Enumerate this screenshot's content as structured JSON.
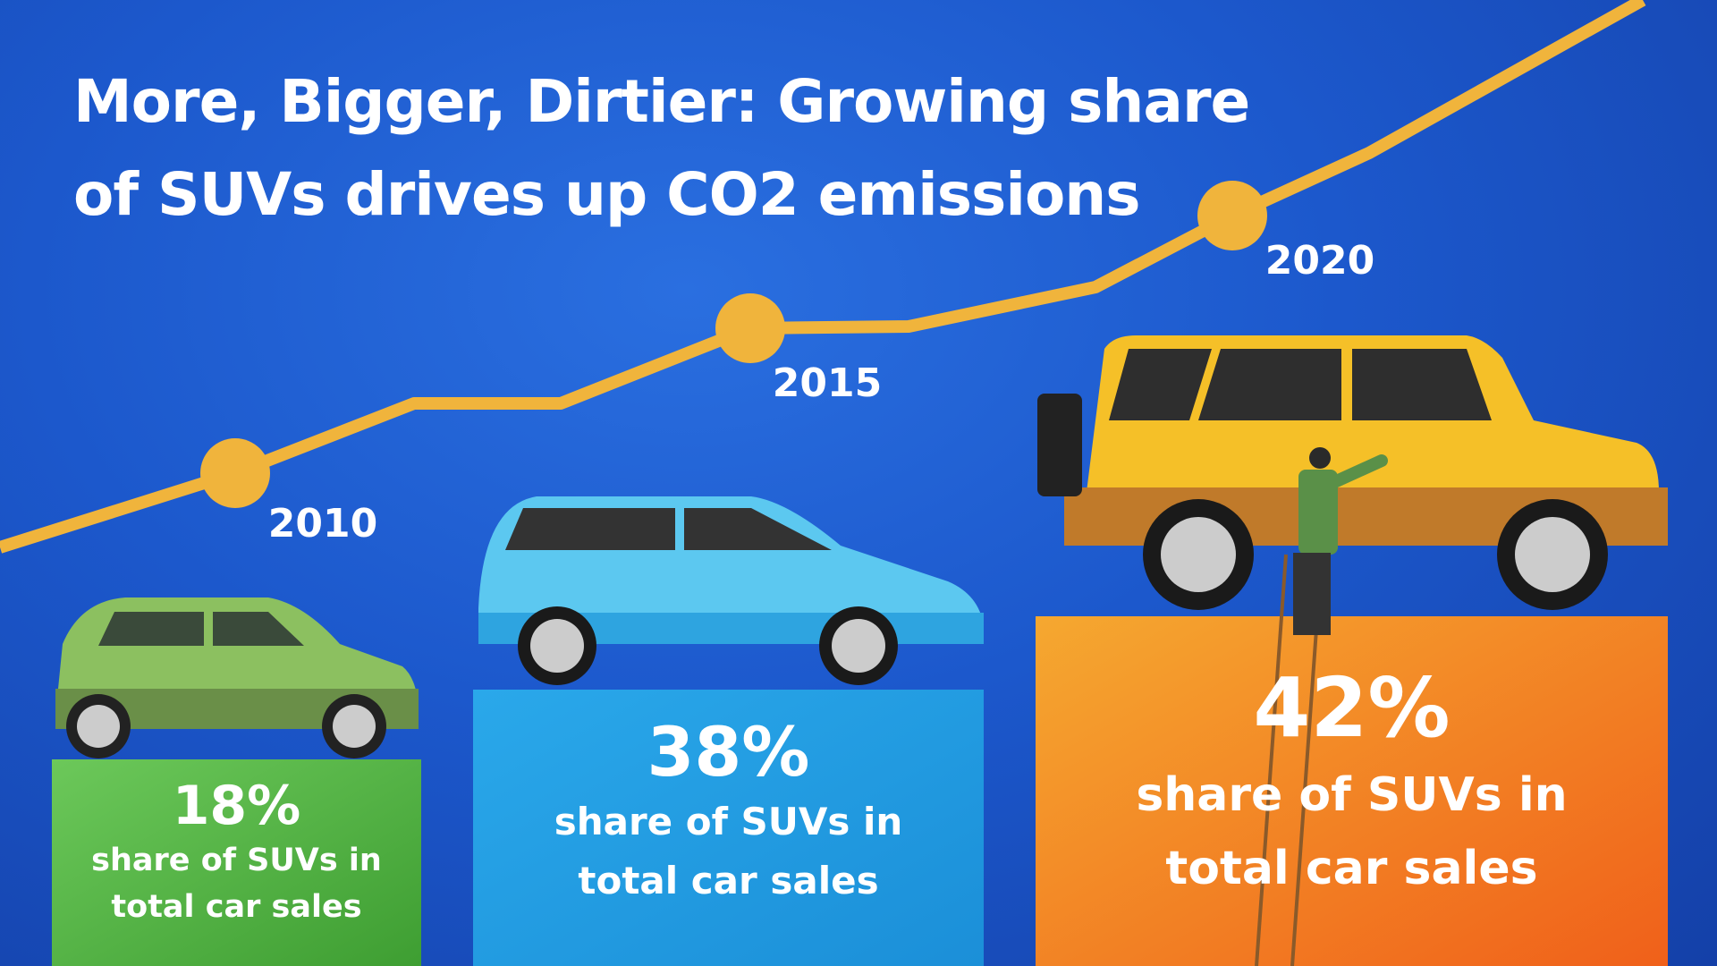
{
  "title": "More, Bigger, Dirtier: Growing share of SUVs drives up CO2 emissions",
  "colors": {
    "background": "#1c58cc",
    "line": "#f0b43c",
    "bar_2010": "#4fb03e",
    "bar_2015": "#1fa0e6",
    "bar_2020": "#f07a1e"
  },
  "chart_data": {
    "type": "bar",
    "title": "More, Bigger, Dirtier: Growing share of SUVs drives up CO2 emissions",
    "categories": [
      "2010",
      "2015",
      "2020"
    ],
    "values": [
      18,
      38,
      42
    ],
    "value_labels": [
      "18%",
      "38%",
      "42%"
    ],
    "description_label": "share of SUVs in total car sales",
    "desc_line1": "share of SUVs in",
    "desc_line2": "total car sales",
    "trend_line": "rising decorative line with markers at 2010, 2015, 2020",
    "grid": false
  }
}
